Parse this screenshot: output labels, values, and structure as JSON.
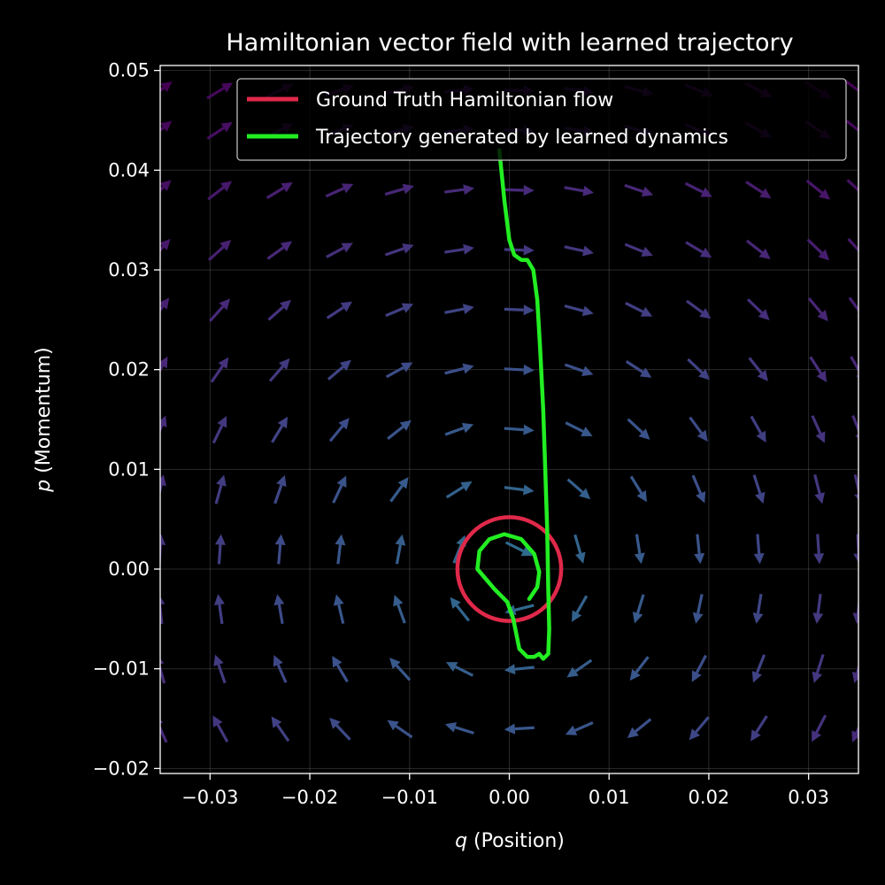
{
  "chart_data": {
    "type": "quiver",
    "title": "Hamiltonian vector field with learned trajectory",
    "xlabel_var": "q",
    "xlabel_rest": " (Position)",
    "ylabel_var": "p",
    "ylabel_rest": " (Momentum)",
    "xlim": [
      -0.035,
      0.035
    ],
    "ylim": [
      -0.0205,
      0.0505
    ],
    "xticks": [
      -0.03,
      -0.02,
      -0.01,
      0.0,
      0.01,
      0.02,
      0.03
    ],
    "xtick_labels": [
      "−0.03",
      "−0.02",
      "−0.01",
      "0.00",
      "0.01",
      "0.02",
      "0.03"
    ],
    "yticks": [
      -0.02,
      -0.01,
      0.0,
      0.01,
      0.02,
      0.03,
      0.04,
      0.05
    ],
    "ytick_labels": [
      "−0.02",
      "−0.01",
      "0.00",
      "0.01",
      "0.02",
      "0.03",
      "0.04",
      "0.05"
    ],
    "grid": true,
    "legend_position": "top-right",
    "vector_field": {
      "description_of_field": "dq/dt = p, dp/dt = -q",
      "q_values": [
        -0.035,
        -0.029,
        -0.023,
        -0.017,
        -0.011,
        -0.005,
        0.001,
        0.007,
        0.013,
        0.019,
        0.025,
        0.031,
        0.035
      ],
      "p_values": [
        -0.016,
        -0.01,
        -0.004,
        0.002,
        0.008,
        0.014,
        0.02,
        0.026,
        0.032,
        0.038,
        0.044,
        0.048
      ],
      "colormap": [
        "#2e6e8e",
        "#3b528b",
        "#482878",
        "#440154"
      ]
    },
    "series": [
      {
        "name": "Ground Truth Hamiltonian flow",
        "color": "#e0294a",
        "kind": "circle",
        "center": [
          0.0,
          0.0
        ],
        "radius": 0.0052
      },
      {
        "name": "Trajectory generated by learned dynamics",
        "color": "#22ee22",
        "kind": "line",
        "points": [
          [
            -0.001,
            0.042
          ],
          [
            -0.0005,
            0.037
          ],
          [
            0.0,
            0.033
          ],
          [
            0.0005,
            0.0315
          ],
          [
            0.0012,
            0.031
          ],
          [
            0.0018,
            0.031
          ],
          [
            0.0024,
            0.03
          ],
          [
            0.0028,
            0.027
          ],
          [
            0.0031,
            0.022
          ],
          [
            0.0034,
            0.016
          ],
          [
            0.0036,
            0.01
          ],
          [
            0.0038,
            0.004
          ],
          [
            0.0039,
            -0.002
          ],
          [
            0.004,
            -0.006
          ],
          [
            0.0039,
            -0.0085
          ],
          [
            0.0034,
            -0.009
          ],
          [
            0.003,
            -0.0085
          ],
          [
            0.0025,
            -0.0088
          ],
          [
            0.0018,
            -0.0088
          ],
          [
            0.001,
            -0.008
          ],
          [
            0.0004,
            -0.005
          ],
          [
            -0.0002,
            -0.0033
          ],
          [
            -0.0015,
            -0.002
          ],
          [
            -0.0032,
            0.0
          ],
          [
            -0.003,
            0.0018
          ],
          [
            -0.002,
            0.003
          ],
          [
            -0.0005,
            0.0035
          ],
          [
            0.0012,
            0.003
          ],
          [
            0.0025,
            0.0015
          ],
          [
            0.003,
            -0.0003
          ],
          [
            0.0028,
            -0.0018
          ],
          [
            0.002,
            -0.003
          ]
        ]
      }
    ]
  }
}
